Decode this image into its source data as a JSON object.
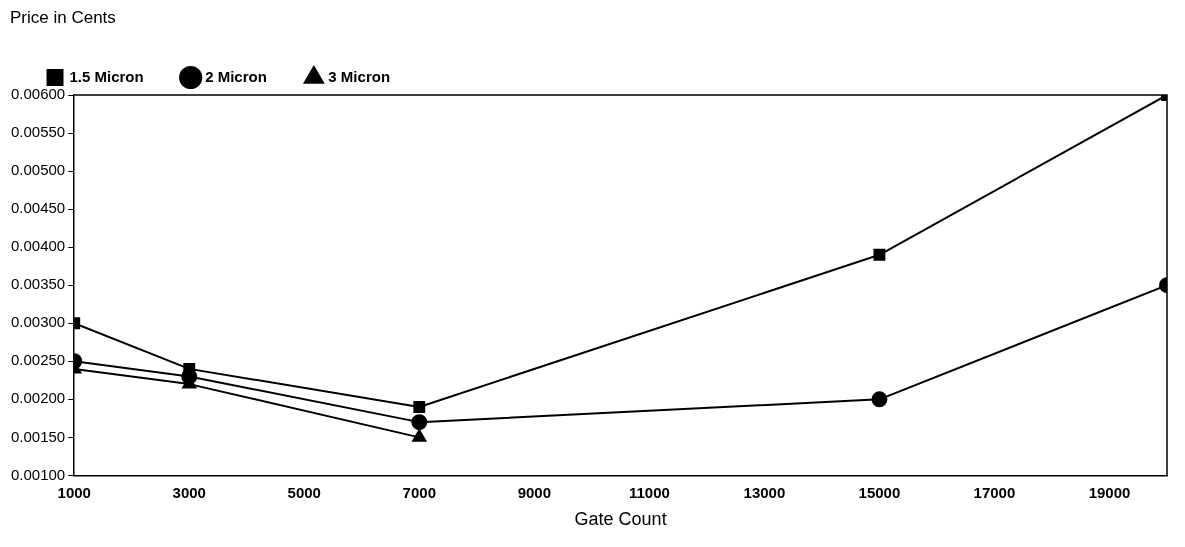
{
  "chart_data": {
    "type": "line",
    "xlabel": "Gate Count",
    "ylabel": "Price in Cents",
    "xlim": [
      1000,
      20000
    ],
    "xticks": [
      1000,
      3000,
      5000,
      7000,
      9000,
      11000,
      13000,
      15000,
      17000,
      19000
    ],
    "ylim": [
      0.001,
      0.006
    ],
    "yticks": [
      {
        "value": 0.001,
        "label": "0.00100"
      },
      {
        "value": 0.0015,
        "label": "0.00150"
      },
      {
        "value": 0.002,
        "label": "0.00200"
      },
      {
        "value": 0.0025,
        "label": "0.00250"
      },
      {
        "value": 0.003,
        "label": "0.00300"
      },
      {
        "value": 0.0035,
        "label": "0.00350"
      },
      {
        "value": 0.004,
        "label": "0.00400"
      },
      {
        "value": 0.0045,
        "label": "0.00450"
      },
      {
        "value": 0.005,
        "label": "0.00500"
      },
      {
        "value": 0.0055,
        "label": "0.00550"
      },
      {
        "value": 0.006,
        "label": "0.00600"
      }
    ],
    "grid": false,
    "legend": "top left",
    "line_style": "solid",
    "series": [
      {
        "name": "1.5 Micron",
        "color": "#000000",
        "marker": "square",
        "x": [
          1000,
          3000,
          7000,
          15000,
          20000
        ],
        "values": [
          0.003,
          0.0024,
          0.0019,
          0.0039,
          0.006
        ]
      },
      {
        "name": "2 Micron",
        "color": "#000000",
        "marker": "circle",
        "x": [
          1000,
          3000,
          7000,
          15000,
          20000
        ],
        "values": [
          0.0025,
          0.0023,
          0.0017,
          0.002,
          0.0035
        ]
      },
      {
        "name": "3 Micron",
        "color": "#000000",
        "marker": "triangle",
        "x": [
          1000,
          3000,
          7000
        ],
        "values": [
          0.0024,
          0.0022,
          0.0015
        ]
      }
    ]
  }
}
